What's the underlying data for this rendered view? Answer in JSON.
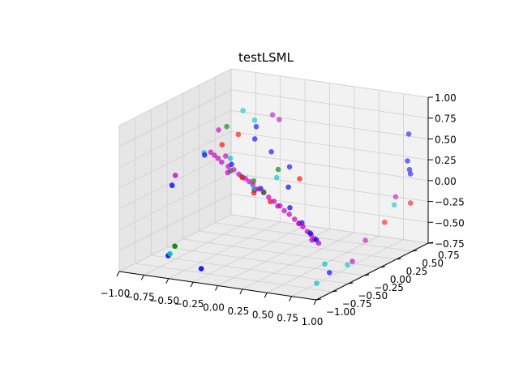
{
  "chart_data": {
    "type": "scatter",
    "projection": "3d",
    "title": "testLSML",
    "xlabel": "",
    "ylabel": "",
    "zlabel": "",
    "grid": true,
    "xlim": [
      -1.0,
      1.0
    ],
    "ylim": [
      -1.0,
      0.75
    ],
    "zlim": [
      -0.75,
      1.0
    ],
    "x_ticks": [
      "−1.00",
      "−0.75",
      "−0.50",
      "−0.25",
      "0.00",
      "0.25",
      "0.50",
      "0.75",
      "1.00"
    ],
    "y_ticks": [
      "−1.00",
      "−0.75",
      "−0.50",
      "−0.25",
      "0.00",
      "0.25",
      "0.50",
      "0.75"
    ],
    "z_ticks": [
      "−0.75",
      "−0.50",
      "−0.25",
      "0.00",
      "0.25",
      "0.50",
      "0.75",
      "1.00"
    ],
    "colors": {
      "blue": "#0000ff",
      "magenta": "#c000c0",
      "green": "#008000",
      "cyan": "#00c0c0",
      "red": "#ff0000"
    },
    "series": [
      {
        "color": "magenta",
        "points": [
          [
            -0.85,
            0.2,
            0.24
          ],
          [
            -0.8,
            0.18,
            0.22
          ],
          [
            -0.75,
            0.16,
            0.2
          ],
          [
            -0.7,
            0.14,
            0.17
          ],
          [
            -0.62,
            0.12,
            0.14
          ],
          [
            -0.55,
            0.1,
            0.12
          ],
          [
            -0.48,
            0.07,
            0.09
          ],
          [
            -0.4,
            0.05,
            0.06
          ],
          [
            -0.35,
            0.03,
            0.04
          ],
          [
            -0.3,
            0.01,
            0.02
          ],
          [
            -0.22,
            -0.02,
            -0.01
          ],
          [
            -0.15,
            -0.05,
            -0.03
          ],
          [
            -0.08,
            -0.08,
            -0.06
          ],
          [
            0.0,
            -0.12,
            -0.08
          ],
          [
            0.08,
            -0.15,
            -0.11
          ],
          [
            0.15,
            -0.19,
            -0.14
          ],
          [
            0.22,
            -0.22,
            -0.16
          ],
          [
            0.3,
            -0.26,
            -0.19
          ],
          [
            0.37,
            -0.3,
            -0.21
          ],
          [
            0.43,
            -0.33,
            -0.23
          ],
          [
            0.5,
            -0.37,
            -0.26
          ],
          [
            0.56,
            -0.4,
            -0.28
          ],
          [
            0.62,
            -0.44,
            -0.3
          ],
          [
            0.68,
            -0.47,
            -0.33
          ],
          [
            -0.25,
            -0.04,
            -0.02
          ],
          [
            0.05,
            -0.14,
            -0.12
          ],
          [
            0.35,
            -0.27,
            -0.23
          ],
          [
            0.58,
            -0.42,
            -0.33
          ],
          [
            -0.45,
            0.55,
            0.62
          ],
          [
            -0.35,
            0.5,
            0.6
          ],
          [
            -0.9,
            0.4,
            0.42
          ],
          [
            -0.75,
            0.28,
            0.18
          ],
          [
            0.8,
            0.55,
            -0.15
          ],
          [
            0.72,
            0.2,
            -0.55
          ],
          [
            0.75,
            -0.05,
            -0.7
          ],
          [
            -0.95,
            -0.2,
            0.1
          ],
          [
            -0.58,
            0.05,
            0.1
          ]
        ]
      },
      {
        "color": "blue",
        "points": [
          [
            -0.88,
            0.15,
            0.22
          ],
          [
            -0.6,
            0.14,
            0.16
          ],
          [
            -0.2,
            -0.02,
            0.0
          ],
          [
            0.2,
            -0.18,
            -0.1
          ],
          [
            0.4,
            -0.3,
            -0.2
          ],
          [
            0.55,
            -0.4,
            -0.26
          ],
          [
            0.65,
            -0.46,
            -0.3
          ],
          [
            -0.5,
            0.35,
            0.4
          ],
          [
            -0.55,
            0.45,
            0.5
          ],
          [
            -0.05,
            0.2,
            0.2
          ],
          [
            -0.3,
            0.3,
            0.3
          ],
          [
            0.1,
            -0.05,
            0.08
          ],
          [
            -0.95,
            -0.25,
            0.0
          ],
          [
            0.9,
            0.6,
            0.6
          ],
          [
            0.92,
            0.55,
            0.3
          ],
          [
            0.94,
            0.55,
            0.2
          ],
          [
            0.95,
            0.55,
            0.15
          ],
          [
            -0.6,
            -0.85,
            -0.55
          ],
          [
            -0.2,
            -0.95,
            -0.6
          ],
          [
            0.55,
            -0.1,
            -0.85
          ]
        ]
      },
      {
        "color": "green",
        "points": [
          [
            -0.85,
            0.45,
            0.45
          ],
          [
            -0.65,
            0.2,
            0.05
          ],
          [
            -0.6,
            0.3,
            -0.05
          ],
          [
            -0.35,
            0.1,
            0.02
          ],
          [
            -0.3,
            0.05,
            -0.05
          ],
          [
            -0.15,
            -0.05,
            -0.02
          ],
          [
            -0.5,
            -0.9,
            -0.4
          ],
          [
            -0.1,
            0.1,
            0.2
          ]
        ]
      },
      {
        "color": "cyan",
        "points": [
          [
            -0.75,
            0.55,
            0.62
          ],
          [
            -0.6,
            0.5,
            0.55
          ],
          [
            -0.95,
            0.25,
            0.2
          ],
          [
            -0.05,
            0.0,
            0.15
          ],
          [
            -0.25,
            -0.05,
            0.0
          ],
          [
            -0.55,
            -0.9,
            -0.5
          ],
          [
            0.85,
            0.45,
            -0.2
          ],
          [
            0.6,
            -0.25,
            -0.68
          ],
          [
            0.7,
            -0.05,
            -0.75
          ],
          [
            0.55,
            -0.3,
            -0.9
          ],
          [
            -0.65,
            0.2,
            0.2
          ]
        ]
      },
      {
        "color": "red",
        "points": [
          [
            -0.7,
            0.4,
            0.4
          ],
          [
            -0.45,
            0.08,
            0.05
          ],
          [
            -0.25,
            -0.05,
            -0.05
          ],
          [
            0.15,
            0.05,
            0.15
          ],
          [
            -0.05,
            -0.1,
            -0.1
          ],
          [
            0.95,
            0.55,
            -0.2
          ],
          [
            -0.8,
            0.3,
            0.3
          ],
          [
            0.85,
            0.3,
            -0.35
          ]
        ]
      }
    ]
  }
}
